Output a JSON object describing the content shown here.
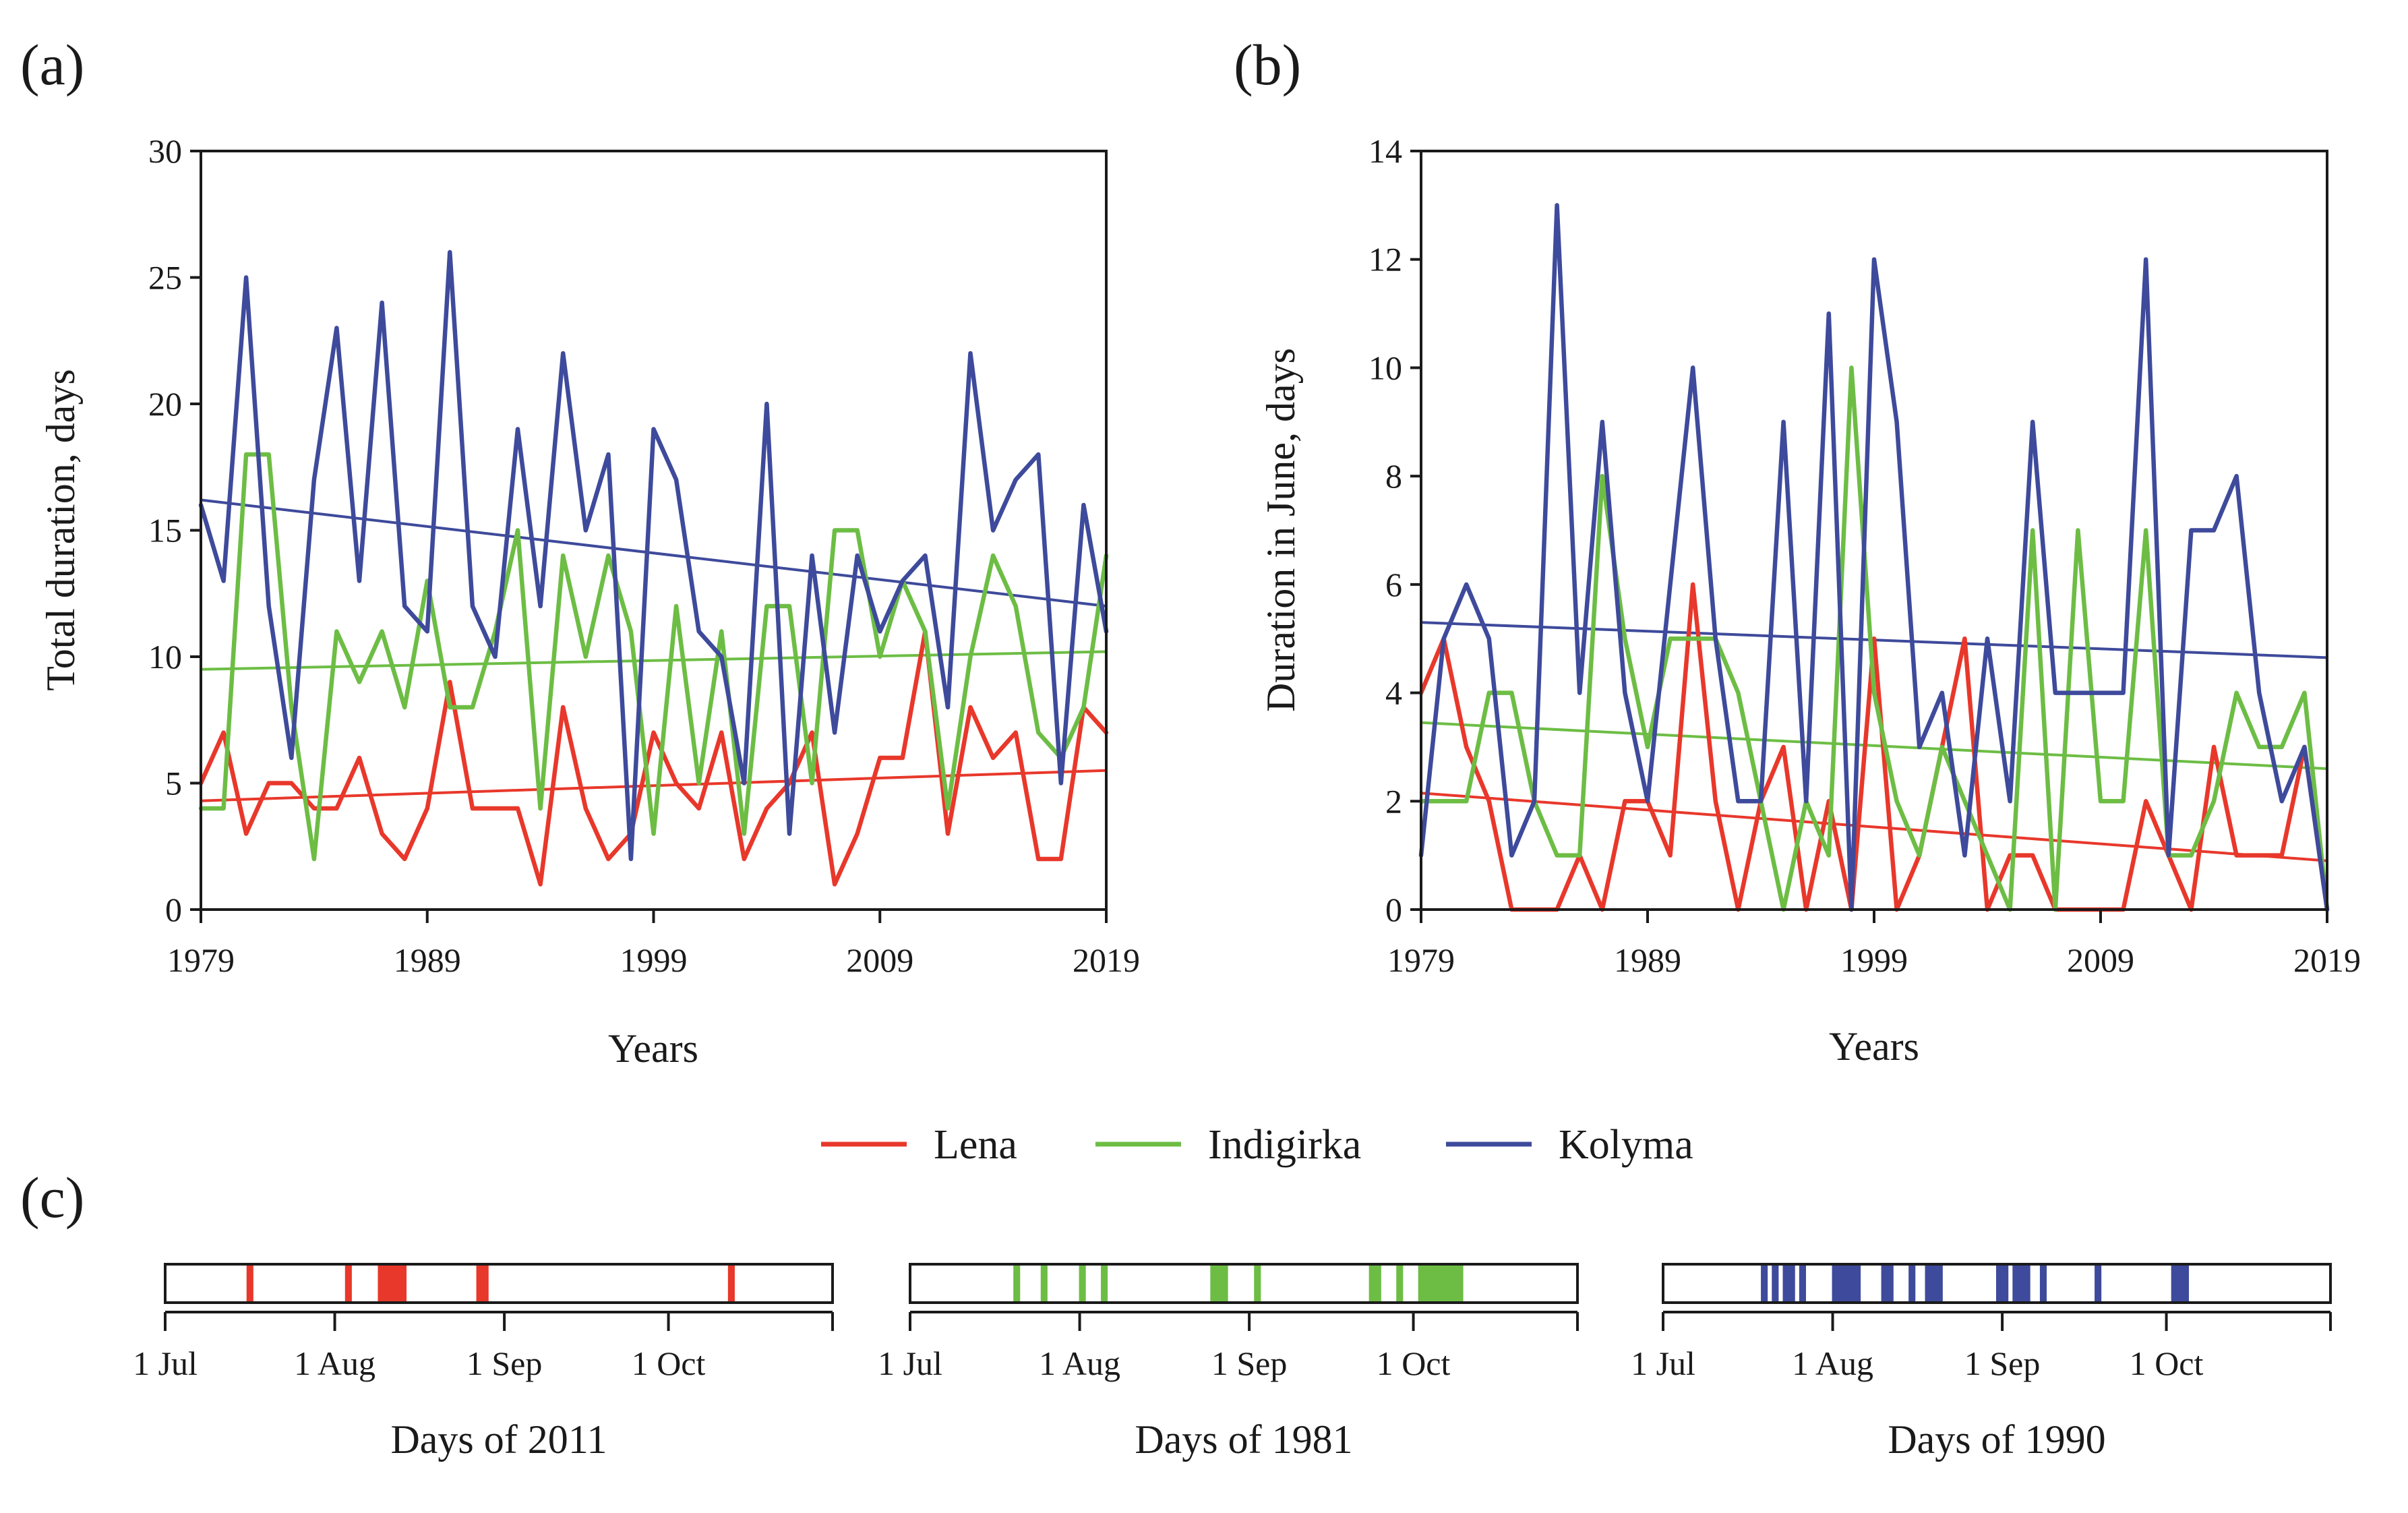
{
  "figure": {
    "legend": [
      {
        "name": "Lena",
        "color": "#e8382b"
      },
      {
        "name": "Indigirka",
        "color": "#6dbd45"
      },
      {
        "name": "Kolyma",
        "color": "#3e4a9b"
      }
    ]
  },
  "chart_data": [
    {
      "id": "a",
      "type": "line",
      "panel_label": "(a)",
      "title": "",
      "xlabel": "Years",
      "ylabel": "Total duration, days",
      "xlim": [
        1979,
        2019
      ],
      "ylim": [
        0,
        30
      ],
      "xticks": [
        1979,
        1989,
        1999,
        2009,
        2019
      ],
      "yticks": [
        0,
        5,
        10,
        15,
        20,
        25,
        30
      ],
      "x": [
        1979,
        1980,
        1981,
        1982,
        1983,
        1984,
        1985,
        1986,
        1987,
        1988,
        1989,
        1990,
        1991,
        1992,
        1993,
        1994,
        1995,
        1996,
        1997,
        1998,
        1999,
        2000,
        2001,
        2002,
        2003,
        2004,
        2005,
        2006,
        2007,
        2008,
        2009,
        2010,
        2011,
        2012,
        2013,
        2014,
        2015,
        2016,
        2017,
        2018,
        2019
      ],
      "series": [
        {
          "name": "Lena",
          "color": "#e8382b",
          "values": [
            5,
            7,
            3,
            5,
            5,
            4,
            4,
            6,
            3,
            2,
            4,
            9,
            4,
            4,
            4,
            1,
            8,
            4,
            2,
            3,
            7,
            5,
            4,
            7,
            2,
            4,
            5,
            7,
            1,
            3,
            6,
            6,
            11,
            3,
            8,
            6,
            7,
            2,
            2,
            8,
            7
          ],
          "trend": [
            4.3,
            5.5
          ]
        },
        {
          "name": "Indigirka",
          "color": "#6dbd45",
          "values": [
            4,
            4,
            18,
            18,
            8,
            2,
            11,
            9,
            11,
            8,
            13,
            8,
            8,
            11,
            15,
            4,
            14,
            10,
            14,
            11,
            3,
            12,
            5,
            11,
            3,
            12,
            12,
            5,
            15,
            15,
            10,
            13,
            11,
            4,
            10,
            14,
            12,
            7,
            6,
            8,
            14
          ],
          "trend": [
            9.5,
            10.2
          ]
        },
        {
          "name": "Kolyma",
          "color": "#3e4a9b",
          "values": [
            16,
            13,
            25,
            12,
            6,
            17,
            23,
            13,
            24,
            12,
            11,
            26,
            12,
            10,
            19,
            12,
            22,
            15,
            18,
            2,
            19,
            17,
            11,
            10,
            5,
            20,
            3,
            14,
            7,
            14,
            11,
            13,
            14,
            8,
            22,
            15,
            17,
            18,
            5,
            16,
            11
          ],
          "trend": [
            16.2,
            12.0
          ]
        }
      ]
    },
    {
      "id": "b",
      "type": "line",
      "panel_label": "(b)",
      "title": "",
      "xlabel": "Years",
      "ylabel": "Duration in June, days",
      "xlim": [
        1979,
        2019
      ],
      "ylim": [
        0,
        14
      ],
      "xticks": [
        1979,
        1989,
        1999,
        2009,
        2019
      ],
      "yticks": [
        0,
        2,
        4,
        6,
        8,
        10,
        12,
        14
      ],
      "x": [
        1979,
        1980,
        1981,
        1982,
        1983,
        1984,
        1985,
        1986,
        1987,
        1988,
        1989,
        1990,
        1991,
        1992,
        1993,
        1994,
        1995,
        1996,
        1997,
        1998,
        1999,
        2000,
        2001,
        2002,
        2003,
        2004,
        2005,
        2006,
        2007,
        2008,
        2009,
        2010,
        2011,
        2012,
        2013,
        2014,
        2015,
        2016,
        2017,
        2018,
        2019
      ],
      "series": [
        {
          "name": "Lena",
          "color": "#e8382b",
          "values": [
            4,
            5,
            3,
            2,
            0,
            0,
            0,
            1,
            0,
            2,
            2,
            1,
            6,
            2,
            0,
            2,
            3,
            0,
            2,
            0,
            5,
            0,
            1,
            3,
            5,
            0,
            1,
            1,
            0,
            0,
            0,
            0,
            2,
            1,
            0,
            3,
            1,
            1,
            1,
            3,
            0
          ],
          "trend": [
            2.15,
            0.9
          ]
        },
        {
          "name": "Indigirka",
          "color": "#6dbd45",
          "values": [
            2,
            2,
            2,
            4,
            4,
            2,
            1,
            1,
            8,
            5,
            3,
            5,
            5,
            5,
            4,
            2,
            0,
            2,
            1,
            10,
            4,
            2,
            1,
            3,
            2,
            1,
            0,
            7,
            0,
            7,
            2,
            2,
            7,
            1,
            1,
            2,
            4,
            3,
            3,
            4,
            0
          ],
          "trend": [
            3.45,
            2.6
          ]
        },
        {
          "name": "Kolyma",
          "color": "#3e4a9b",
          "values": [
            1,
            5,
            6,
            5,
            1,
            2,
            13,
            4,
            9,
            4,
            2,
            6,
            10,
            5,
            2,
            2,
            9,
            2,
            11,
            0,
            12,
            9,
            3,
            4,
            1,
            5,
            2,
            9,
            4,
            4,
            4,
            4,
            12,
            1,
            7,
            7,
            8,
            4,
            2,
            3,
            0
          ],
          "trend": [
            5.3,
            4.65
          ]
        }
      ]
    },
    {
      "id": "c1",
      "type": "timeline",
      "panel_label": "(c)",
      "xlabel": "Days of 2011",
      "color": "#e8382b",
      "day_range": [
        0,
        122
      ],
      "ticks": [
        {
          "day": 0,
          "label": "1 Jul"
        },
        {
          "day": 31,
          "label": "1 Aug"
        },
        {
          "day": 62,
          "label": "1 Sep"
        },
        {
          "day": 92,
          "label": "1 Oct"
        },
        {
          "day": 122,
          "label": ""
        }
      ],
      "event_days": [
        15,
        33,
        39,
        40,
        41,
        42,
        43,
        57,
        58,
        103
      ]
    },
    {
      "id": "c2",
      "type": "timeline",
      "xlabel": "Days of 1981",
      "color": "#6dbd45",
      "day_range": [
        0,
        122
      ],
      "ticks": [
        {
          "day": 0,
          "label": "1 Jul"
        },
        {
          "day": 31,
          "label": "1 Aug"
        },
        {
          "day": 62,
          "label": "1 Sep"
        },
        {
          "day": 92,
          "label": "1 Oct"
        },
        {
          "day": 122,
          "label": ""
        }
      ],
      "event_days": [
        19,
        24,
        31,
        35,
        55,
        56,
        57,
        63,
        84,
        85,
        89,
        93,
        94,
        95,
        96,
        97,
        98,
        99,
        100
      ]
    },
    {
      "id": "c3",
      "type": "timeline",
      "xlabel": "Days of 1990",
      "color": "#3e4a9b",
      "day_range": [
        0,
        122
      ],
      "ticks": [
        {
          "day": 0,
          "label": "1 Jul"
        },
        {
          "day": 31,
          "label": "1 Aug"
        },
        {
          "day": 62,
          "label": "1 Sep"
        },
        {
          "day": 92,
          "label": "1 Oct"
        },
        {
          "day": 122,
          "label": ""
        }
      ],
      "event_days": [
        18,
        20,
        22,
        23,
        25,
        31,
        32,
        33,
        34,
        35,
        40,
        41,
        45,
        48,
        49,
        50,
        61,
        62,
        64,
        65,
        66,
        69,
        79,
        93,
        94,
        95
      ]
    }
  ]
}
